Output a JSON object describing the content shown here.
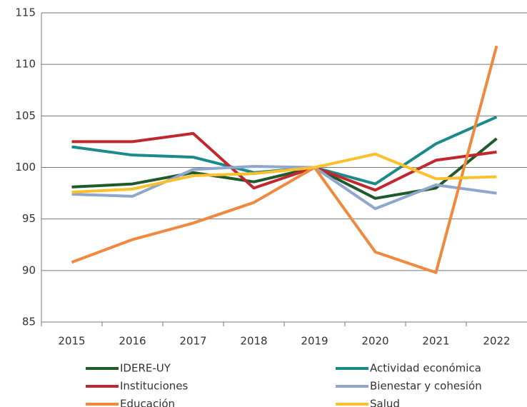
{
  "chart_data": {
    "type": "line",
    "categories": [
      "2015",
      "2016",
      "2017",
      "2018",
      "2019",
      "2020",
      "2021",
      "2022"
    ],
    "series": [
      {
        "name": "IDERE-UY",
        "color": "#1e5a2a",
        "values": [
          98.1,
          98.4,
          99.5,
          98.6,
          100,
          97.0,
          98.0,
          102.8
        ]
      },
      {
        "name": "Actividad económica",
        "color": "#1b8a8a",
        "values": [
          102.0,
          101.2,
          101.0,
          99.5,
          100,
          98.4,
          102.3,
          104.9
        ]
      },
      {
        "name": "Instituciones",
        "color": "#c0282e",
        "values": [
          102.5,
          102.5,
          103.3,
          98.0,
          100,
          97.8,
          100.7,
          101.5
        ]
      },
      {
        "name": "Bienestar y cohesión",
        "color": "#8fa7cc",
        "values": [
          97.4,
          97.2,
          99.8,
          100.1,
          100,
          96.0,
          98.3,
          97.5
        ]
      },
      {
        "name": "Educación",
        "color": "#f0883e",
        "values": [
          90.8,
          93.0,
          94.6,
          96.6,
          100,
          91.8,
          89.8,
          111.8
        ]
      },
      {
        "name": "Salud",
        "color": "#fbc02d",
        "values": [
          97.6,
          97.9,
          99.2,
          99.4,
          100,
          101.3,
          98.9,
          99.1
        ]
      }
    ],
    "ylim": [
      85,
      115
    ],
    "yticks": [
      85,
      90,
      95,
      100,
      105,
      110,
      115
    ],
    "grid": true
  }
}
